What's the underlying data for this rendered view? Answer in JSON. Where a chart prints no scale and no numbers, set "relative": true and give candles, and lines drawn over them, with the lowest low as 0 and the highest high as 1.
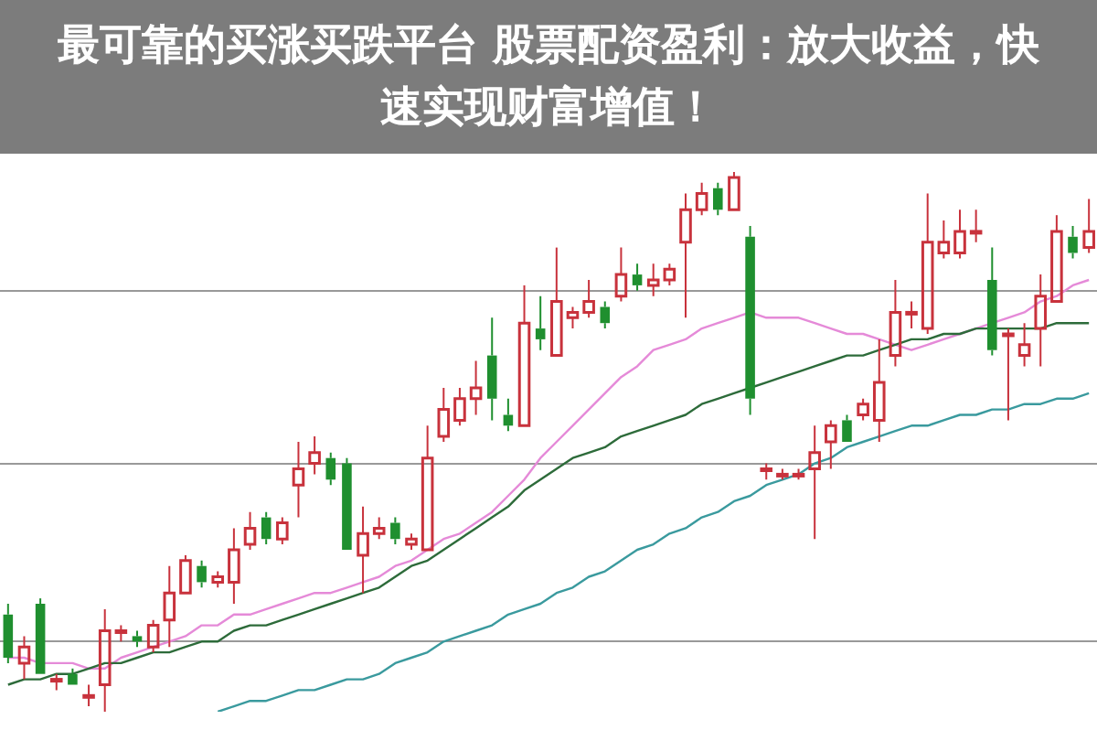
{
  "chart_data": {
    "type": "candlestick",
    "title": "最可靠的买涨买跌平台 股票配资盈利：放大收益，快速实现财富增值！",
    "relative": true,
    "grid": "y",
    "categories": [
      null,
      null,
      null,
      null,
      null,
      null,
      null,
      null,
      null,
      null,
      null,
      null,
      null,
      null,
      null,
      null,
      null,
      null,
      null,
      null,
      null,
      null,
      null,
      null,
      null,
      null,
      null,
      null,
      null,
      null,
      null,
      null,
      null,
      null,
      null,
      null,
      null,
      null,
      null,
      null,
      null,
      null,
      null,
      null,
      null,
      null,
      null,
      null,
      null,
      null,
      null,
      null,
      null,
      null,
      null,
      null,
      null,
      null,
      null,
      null,
      null,
      null,
      null,
      null,
      null,
      null,
      null,
      null
    ],
    "ohlc": [
      [
        0.18,
        0.2,
        0.09,
        0.1
      ],
      [
        0.09,
        0.14,
        0.06,
        0.12
      ],
      [
        0.2,
        0.21,
        0.07,
        0.07
      ],
      [
        0.06,
        0.07,
        0.04,
        0.06
      ],
      [
        0.07,
        0.08,
        0.05,
        0.05
      ],
      [
        0.03,
        0.05,
        0.01,
        0.03
      ],
      [
        0.05,
        0.19,
        0,
        0.15
      ],
      [
        0.15,
        0.16,
        0.13,
        0.15
      ],
      [
        0.14,
        0.15,
        0.12,
        0.13
      ],
      [
        0.12,
        0.17,
        0.11,
        0.16
      ],
      [
        0.17,
        0.27,
        0.12,
        0.22
      ],
      [
        0.22,
        0.29,
        0.22,
        0.28
      ],
      [
        0.27,
        0.28,
        0.23,
        0.24
      ],
      [
        0.24,
        0.26,
        0.23,
        0.25
      ],
      [
        0.24,
        0.34,
        0.2,
        0.3
      ],
      [
        0.31,
        0.37,
        0.3,
        0.34
      ],
      [
        0.36,
        0.37,
        0.31,
        0.32
      ],
      [
        0.32,
        0.36,
        0.31,
        0.35
      ],
      [
        0.42,
        0.5,
        0.36,
        0.45
      ],
      [
        0.46,
        0.51,
        0.44,
        0.48
      ],
      [
        0.47,
        0.48,
        0.42,
        0.43
      ],
      [
        0.46,
        0.47,
        0.3,
        0.3
      ],
      [
        0.29,
        0.38,
        0.22,
        0.33
      ],
      [
        0.33,
        0.36,
        0.32,
        0.34
      ],
      [
        0.35,
        0.36,
        0.31,
        0.32
      ],
      [
        0.31,
        0.33,
        0.3,
        0.32
      ],
      [
        0.3,
        0.53,
        0.3,
        0.47
      ],
      [
        0.51,
        0.6,
        0.5,
        0.56
      ],
      [
        0.54,
        0.6,
        0.53,
        0.58
      ],
      [
        0.58,
        0.65,
        0.55,
        0.6
      ],
      [
        0.66,
        0.73,
        0.54,
        0.58
      ],
      [
        0.55,
        0.58,
        0.52,
        0.53
      ],
      [
        0.53,
        0.79,
        0.53,
        0.72
      ],
      [
        0.71,
        0.77,
        0.67,
        0.69
      ],
      [
        0.66,
        0.86,
        0.66,
        0.76
      ],
      [
        0.73,
        0.75,
        0.71,
        0.74
      ],
      [
        0.74,
        0.8,
        0.73,
        0.76
      ],
      [
        0.75,
        0.76,
        0.71,
        0.72
      ],
      [
        0.77,
        0.86,
        0.76,
        0.81
      ],
      [
        0.81,
        0.83,
        0.78,
        0.79
      ],
      [
        0.79,
        0.83,
        0.77,
        0.8
      ],
      [
        0.8,
        0.83,
        0.79,
        0.82
      ],
      [
        0.87,
        0.96,
        0.73,
        0.93
      ],
      [
        0.93,
        0.98,
        0.92,
        0.96
      ],
      [
        0.97,
        0.98,
        0.92,
        0.93
      ],
      [
        0.93,
        1,
        0.93,
        0.99
      ],
      [
        0.88,
        0.9,
        0.55,
        0.58
      ],
      [
        0.45,
        0.46,
        0.43,
        0.45
      ],
      [
        0.44,
        0.45,
        0.43,
        0.44
      ],
      [
        0.44,
        0.45,
        0.43,
        0.44
      ],
      [
        0.45,
        0.53,
        0.32,
        0.48
      ],
      [
        0.5,
        0.54,
        0.45,
        0.53
      ],
      [
        0.54,
        0.55,
        0.5,
        0.5
      ],
      [
        0.55,
        0.58,
        0.54,
        0.57
      ],
      [
        0.54,
        0.69,
        0.5,
        0.61
      ],
      [
        0.66,
        0.8,
        0.64,
        0.74
      ],
      [
        0.74,
        0.76,
        0.71,
        0.74
      ],
      [
        0.71,
        0.96,
        0.7,
        0.87
      ],
      [
        0.85,
        0.91,
        0.84,
        0.87
      ],
      [
        0.85,
        0.93,
        0.84,
        0.89
      ],
      [
        0.89,
        0.93,
        0.87,
        0.89
      ],
      [
        0.8,
        0.86,
        0.66,
        0.67
      ],
      [
        0.7,
        0.71,
        0.54,
        0.7
      ],
      [
        0.66,
        0.72,
        0.64,
        0.68
      ],
      [
        0.71,
        0.81,
        0.64,
        0.77
      ],
      [
        0.76,
        0.92,
        0.76,
        0.89
      ],
      [
        0.88,
        0.9,
        0.84,
        0.85
      ],
      [
        0.86,
        0.95,
        0.85,
        0.89
      ]
    ],
    "colors": [
      "#1f8f2f",
      "#c8323c",
      "#1f8f2f",
      "#c8323c",
      "#1f8f2f",
      "#c8323c",
      "#c8323c",
      "#c8323c",
      "#1f8f2f",
      "#c8323c",
      "#c8323c",
      "#c8323c",
      "#1f8f2f",
      "#c8323c",
      "#c8323c",
      "#c8323c",
      "#1f8f2f",
      "#c8323c",
      "#c8323c",
      "#c8323c",
      "#1f8f2f",
      "#1f8f2f",
      "#c8323c",
      "#c8323c",
      "#1f8f2f",
      "#c8323c",
      "#c8323c",
      "#c8323c",
      "#c8323c",
      "#c8323c",
      "#1f8f2f",
      "#1f8f2f",
      "#c8323c",
      "#1f8f2f",
      "#c8323c",
      "#c8323c",
      "#c8323c",
      "#1f8f2f",
      "#c8323c",
      "#1f8f2f",
      "#c8323c",
      "#c8323c",
      "#c8323c",
      "#c8323c",
      "#1f8f2f",
      "#c8323c",
      "#1f8f2f",
      "#c8323c",
      "#c8323c",
      "#c8323c",
      "#c8323c",
      "#c8323c",
      "#1f8f2f",
      "#c8323c",
      "#c8323c",
      "#c8323c",
      "#c8323c",
      "#c8323c",
      "#c8323c",
      "#c8323c",
      "#c8323c",
      "#1f8f2f",
      "#c8323c",
      "#c8323c",
      "#c8323c",
      "#c8323c",
      "#1f8f2f",
      "#c8323c"
    ],
    "series": [
      {
        "type": "line",
        "color": "#2d6b3a",
        "values": [
          0.05,
          0.06,
          0.06,
          0.07,
          0.07,
          0.08,
          0.09,
          0.09,
          0.1,
          0.11,
          0.11,
          0.12,
          0.13,
          0.13,
          0.15,
          0.16,
          0.16,
          0.17,
          0.18,
          0.19,
          0.2,
          0.21,
          0.22,
          0.23,
          0.25,
          0.27,
          0.28,
          0.3,
          0.32,
          0.34,
          0.36,
          0.38,
          0.41,
          0.43,
          0.45,
          0.47,
          0.48,
          0.49,
          0.51,
          0.52,
          0.53,
          0.54,
          0.55,
          0.57,
          0.58,
          0.59,
          0.6,
          0.61,
          0.62,
          0.63,
          0.64,
          0.65,
          0.66,
          0.66,
          0.67,
          0.68,
          0.69,
          0.69,
          0.7,
          0.7,
          0.71,
          0.71,
          0.71,
          0.71,
          0.71,
          0.72,
          0.72,
          0.72
        ]
      },
      {
        "type": "line",
        "color": "#3a9a9e",
        "values": [
          null,
          null,
          null,
          null,
          null,
          null,
          null,
          null,
          null,
          null,
          null,
          null,
          null,
          0,
          0.01,
          0.02,
          0.02,
          0.03,
          0.04,
          0.04,
          0.05,
          0.06,
          0.06,
          0.07,
          0.09,
          0.1,
          0.11,
          0.13,
          0.14,
          0.15,
          0.16,
          0.18,
          0.19,
          0.2,
          0.22,
          0.23,
          0.25,
          0.26,
          0.28,
          0.3,
          0.31,
          0.33,
          0.34,
          0.36,
          0.37,
          0.39,
          0.4,
          0.42,
          0.43,
          0.44,
          0.46,
          0.47,
          0.49,
          0.5,
          0.51,
          0.52,
          0.53,
          0.53,
          0.54,
          0.55,
          0.55,
          0.56,
          0.56,
          0.57,
          0.57,
          0.58,
          0.58,
          0.59
        ]
      },
      {
        "type": "line",
        "color": "#e58ad8",
        "values": [
          0.1,
          0.1,
          0.09,
          0.09,
          0.09,
          0.08,
          0.08,
          0.1,
          0.11,
          0.12,
          0.13,
          0.14,
          0.16,
          0.16,
          0.18,
          0.18,
          0.19,
          0.2,
          0.21,
          0.22,
          0.22,
          0.23,
          0.24,
          0.25,
          0.27,
          0.28,
          0.3,
          0.32,
          0.33,
          0.35,
          0.37,
          0.4,
          0.43,
          0.47,
          0.5,
          0.53,
          0.56,
          0.59,
          0.62,
          0.64,
          0.67,
          0.68,
          0.69,
          0.71,
          0.72,
          0.73,
          0.74,
          0.73,
          0.73,
          0.73,
          0.72,
          0.71,
          0.7,
          0.7,
          0.69,
          0.68,
          0.67,
          0.68,
          0.69,
          0.7,
          0.71,
          0.72,
          0.73,
          0.74,
          0.76,
          0.77,
          0.79,
          0.8
        ]
      }
    ]
  }
}
